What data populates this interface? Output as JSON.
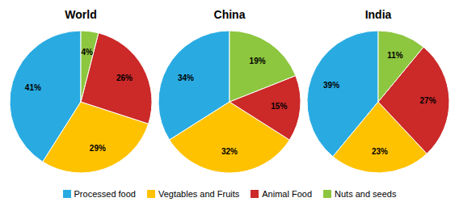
{
  "chart_data": [
    {
      "type": "pie",
      "title": "World",
      "categories": [
        "Processed food",
        "Vegtables and Fruits",
        "Animal Food",
        "Nuts and seeds"
      ],
      "values": [
        41,
        29,
        26,
        4
      ],
      "value_labels": [
        "41%",
        "29%",
        "26%",
        "4%"
      ],
      "data_labels": true,
      "colors": [
        "#29ABE2",
        "#FFC200",
        "#CC2929",
        "#8DC63F"
      ],
      "legend": "bottom"
    },
    {
      "type": "pie",
      "title": "China",
      "categories": [
        "Processed food",
        "Vegtables and Fruits",
        "Animal Food",
        "Nuts and seeds"
      ],
      "values": [
        34,
        32,
        15,
        19
      ],
      "value_labels": [
        "34%",
        "32%",
        "15%",
        "19%"
      ],
      "data_labels": true,
      "colors": [
        "#29ABE2",
        "#FFC200",
        "#CC2929",
        "#8DC63F"
      ],
      "legend": "bottom"
    },
    {
      "type": "pie",
      "title": "India",
      "categories": [
        "Processed food",
        "Vegtables and Fruits",
        "Animal Food",
        "Nuts and seeds"
      ],
      "values": [
        39,
        23,
        27,
        11
      ],
      "value_labels": [
        "39%",
        "23%",
        "27%",
        "11%"
      ],
      "data_labels": true,
      "colors": [
        "#29ABE2",
        "#FFC200",
        "#CC2929",
        "#8DC63F"
      ],
      "legend": "bottom"
    }
  ]
}
